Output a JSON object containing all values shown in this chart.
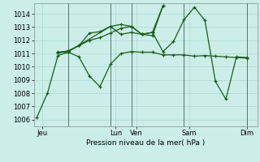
{
  "background_color": "#cceee8",
  "grid_color": "#aad8d0",
  "line_color": "#1a5c1a",
  "title": "Pression niveau de la mer( hPa )",
  "ylim": [
    1005.5,
    1014.8
  ],
  "yticks": [
    1006,
    1007,
    1008,
    1009,
    1010,
    1011,
    1012,
    1013,
    1014
  ],
  "xlim": [
    -0.3,
    21.0
  ],
  "xtick_labels": [
    "Jeu",
    "Lun",
    "Ven",
    "Sam",
    "Dim"
  ],
  "xtick_positions": [
    0.5,
    7.5,
    9.5,
    14.5,
    20.0
  ],
  "vlines": [
    3.0,
    7.0,
    9.0,
    14.0,
    20.0
  ],
  "series1_x": [
    0,
    1,
    2,
    3,
    4,
    5,
    6,
    7,
    8,
    9,
    10,
    11,
    12,
    13,
    14,
    15,
    16,
    17,
    18,
    19,
    20
  ],
  "series1_y": [
    1006.2,
    1008.0,
    1010.85,
    1011.1,
    1010.75,
    1009.3,
    1008.5,
    1010.2,
    1011.0,
    1011.15,
    1011.1,
    1011.1,
    1010.9,
    1010.9,
    1010.9,
    1010.8,
    1010.85,
    1010.8,
    1010.75,
    1010.7,
    1010.65
  ],
  "series2_x": [
    2,
    3,
    4,
    5,
    6,
    7,
    8,
    9,
    10,
    11,
    12,
    13,
    14,
    15,
    16,
    17,
    18,
    19,
    20
  ],
  "series2_y": [
    1011.1,
    1011.2,
    1011.6,
    1012.0,
    1012.2,
    1012.55,
    1012.9,
    1013.05,
    1012.45,
    1012.6,
    1011.15,
    1011.9,
    1013.55,
    1014.5,
    1013.5,
    1008.9,
    1007.55,
    1010.75,
    1010.7
  ],
  "series3_x": [
    2,
    3,
    7,
    8,
    9,
    10,
    11,
    12
  ],
  "series3_y": [
    1011.05,
    1011.15,
    1013.05,
    1013.2,
    1013.05,
    1012.45,
    1012.6,
    1014.6
  ],
  "series4_x": [
    2,
    3,
    4,
    5,
    6,
    7,
    8,
    9,
    10,
    11,
    12
  ],
  "series4_y": [
    1011.05,
    1011.2,
    1011.6,
    1012.55,
    1012.65,
    1013.05,
    1012.45,
    1012.6,
    1012.45,
    1012.35,
    1014.6
  ]
}
